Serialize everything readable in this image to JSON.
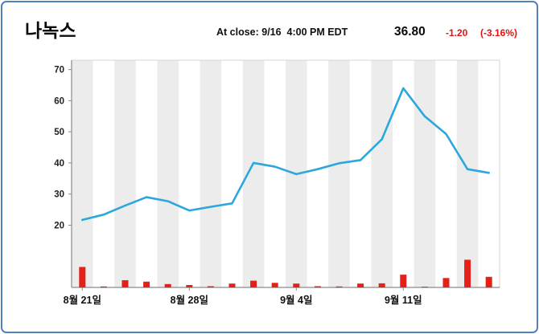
{
  "window": {
    "border_color": "#4f81bd",
    "background": "#ffffff"
  },
  "header": {
    "title": "나녹스",
    "close_label": "At close: 9/16  4:00 PM EDT",
    "price": "36.80",
    "change": "-1.20",
    "change_pct": "(-3.16%)",
    "change_color": "#e0130f"
  },
  "chart_data": {
    "type": "line+bar",
    "title": "",
    "xlabel": "",
    "ylabel": "",
    "x_unit": "trading-day-index",
    "x_tick_labels": [
      {
        "index": 0,
        "label": "8월 21일"
      },
      {
        "index": 5,
        "label": "8월 28일"
      },
      {
        "index": 10,
        "label": "9월 4일"
      },
      {
        "index": 15,
        "label": "9월 11일"
      }
    ],
    "y_ticks": [
      20,
      30,
      40,
      50,
      60,
      70
    ],
    "ylim": [
      0,
      73
    ],
    "series": [
      {
        "name": "close-price",
        "values": [
          21.7,
          23.4,
          26.3,
          29.0,
          27.7,
          24.7,
          25.9,
          27.0,
          40.0,
          38.8,
          36.4,
          38.0,
          39.9,
          40.9,
          47.6,
          64.0,
          55.0,
          49.3,
          38.0,
          36.8
        ]
      },
      {
        "name": "volume-relative",
        "values": [
          8.5,
          0.4,
          3.0,
          2.4,
          1.4,
          1.0,
          0.5,
          1.6,
          2.8,
          1.9,
          1.6,
          0.5,
          0.4,
          1.6,
          1.7,
          5.3,
          0.3,
          3.9,
          11.5,
          4.4
        ]
      }
    ],
    "line_color": "#2ba7dc",
    "bar_color": "#e32119",
    "stripe_color": "#ececec",
    "axis_color": "#8a8a8a",
    "grid_border_color": "#d6d6d6",
    "tick_label_color": "#222222",
    "x_label_color": "#111111",
    "last_close": 36.8,
    "last_date": "9/16"
  }
}
